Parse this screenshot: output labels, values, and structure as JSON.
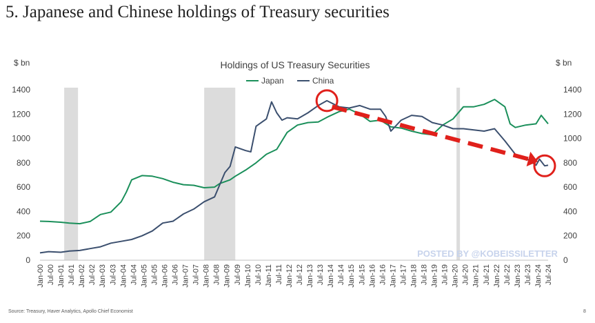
{
  "slide": {
    "title": "5. Japanese and Chinese holdings of Treasury securities",
    "source": "Source: Treasury, Haver Analytics, Apollo Chief Economist",
    "page_number": "8"
  },
  "watermark": "POSTED BY @KOBEISSILETTER",
  "colors": {
    "japan": "#1a8f5a",
    "china": "#3b4f6e",
    "recession": "#dcdcdc",
    "annotation": "#e0201b",
    "watermark": "#c7d3ec"
  },
  "annotations": [
    {
      "type": "circle",
      "date": "2013-11",
      "value": 1310,
      "color": "#e0201b"
    },
    {
      "type": "circle",
      "date": "2024-05",
      "value": 775,
      "color": "#e0201b"
    },
    {
      "type": "dashed-arrow",
      "from_date": "2014-02",
      "from_value": 1260,
      "to_date": "2024-01",
      "to_value": 810,
      "color": "#e0201b"
    }
  ],
  "chart_data": {
    "type": "line",
    "title": "Holdings of US Treasury Securities",
    "ylabel_left": "$ bn",
    "ylabel_right": "$ bn",
    "ylim": [
      0,
      1400
    ],
    "yticks": [
      0,
      200,
      400,
      600,
      800,
      1000,
      1200,
      1400
    ],
    "xlim": [
      "2000-01",
      "2024-07"
    ],
    "xtick_labels": [
      "Jan-00",
      "Jul-00",
      "Jan-01",
      "Jul-01",
      "Jan-02",
      "Jul-02",
      "Jan-03",
      "Jul-03",
      "Jan-04",
      "Jul-04",
      "Jan-05",
      "Jul-05",
      "Jan-06",
      "Jul-06",
      "Jan-07",
      "Jul-07",
      "Jan-08",
      "Jul-08",
      "Jan-09",
      "Jul-09",
      "Jan-10",
      "Jul-10",
      "Jan-11",
      "Jul-11",
      "Jan-12",
      "Jul-12",
      "Jan-13",
      "Jul-13",
      "Jan-14",
      "Jul-14",
      "Jan-15",
      "Jul-15",
      "Jan-16",
      "Jul-16",
      "Jan-17",
      "Jul-17",
      "Jan-18",
      "Jul-18",
      "Jan-19",
      "Jul-19",
      "Jan-20",
      "Jul-20",
      "Jan-21",
      "Jul-21",
      "Jan-22",
      "Jul-22",
      "Jan-23",
      "Jul-23",
      "Jan-24",
      "Jul-24"
    ],
    "legend": {
      "position": "top-center"
    },
    "recession_bands": [
      {
        "start": "2001-03",
        "end": "2001-11"
      },
      {
        "start": "2007-12",
        "end": "2009-06"
      },
      {
        "start": "2020-02",
        "end": "2020-04"
      }
    ],
    "series": [
      {
        "name": "Japan",
        "color": "#1a8f5a",
        "points": [
          [
            "2000-01",
            320
          ],
          [
            "2000-06",
            318
          ],
          [
            "2001-01",
            312
          ],
          [
            "2001-06",
            305
          ],
          [
            "2001-12",
            300
          ],
          [
            "2002-06",
            318
          ],
          [
            "2002-12",
            375
          ],
          [
            "2003-06",
            395
          ],
          [
            "2003-12",
            480
          ],
          [
            "2004-03",
            560
          ],
          [
            "2004-06",
            660
          ],
          [
            "2004-12",
            695
          ],
          [
            "2005-06",
            690
          ],
          [
            "2005-12",
            670
          ],
          [
            "2006-06",
            640
          ],
          [
            "2006-12",
            620
          ],
          [
            "2007-06",
            615
          ],
          [
            "2007-12",
            595
          ],
          [
            "2008-06",
            600
          ],
          [
            "2008-09",
            630
          ],
          [
            "2009-03",
            660
          ],
          [
            "2009-06",
            690
          ],
          [
            "2009-12",
            740
          ],
          [
            "2010-06",
            800
          ],
          [
            "2010-12",
            870
          ],
          [
            "2011-06",
            910
          ],
          [
            "2011-12",
            1050
          ],
          [
            "2012-06",
            1110
          ],
          [
            "2012-12",
            1130
          ],
          [
            "2013-06",
            1135
          ],
          [
            "2013-12",
            1180
          ],
          [
            "2014-06",
            1220
          ],
          [
            "2014-12",
            1240
          ],
          [
            "2015-06",
            1200
          ],
          [
            "2015-12",
            1140
          ],
          [
            "2016-06",
            1150
          ],
          [
            "2016-12",
            1095
          ],
          [
            "2017-06",
            1085
          ],
          [
            "2017-12",
            1060
          ],
          [
            "2018-06",
            1040
          ],
          [
            "2018-12",
            1030
          ],
          [
            "2019-06",
            1110
          ],
          [
            "2019-12",
            1160
          ],
          [
            "2020-06",
            1260
          ],
          [
            "2020-12",
            1260
          ],
          [
            "2021-06",
            1280
          ],
          [
            "2021-12",
            1320
          ],
          [
            "2022-06",
            1260
          ],
          [
            "2022-09",
            1120
          ],
          [
            "2022-12",
            1090
          ],
          [
            "2023-06",
            1110
          ],
          [
            "2023-12",
            1120
          ],
          [
            "2024-03",
            1190
          ],
          [
            "2024-07",
            1120
          ]
        ]
      },
      {
        "name": "China",
        "color": "#3b4f6e",
        "points": [
          [
            "2000-01",
            60
          ],
          [
            "2000-06",
            70
          ],
          [
            "2001-01",
            65
          ],
          [
            "2001-06",
            75
          ],
          [
            "2001-12",
            80
          ],
          [
            "2002-06",
            95
          ],
          [
            "2002-12",
            110
          ],
          [
            "2003-06",
            140
          ],
          [
            "2003-12",
            155
          ],
          [
            "2004-06",
            170
          ],
          [
            "2004-12",
            200
          ],
          [
            "2005-06",
            240
          ],
          [
            "2005-12",
            305
          ],
          [
            "2006-06",
            320
          ],
          [
            "2006-12",
            380
          ],
          [
            "2007-06",
            420
          ],
          [
            "2007-12",
            480
          ],
          [
            "2008-06",
            520
          ],
          [
            "2008-12",
            720
          ],
          [
            "2009-03",
            770
          ],
          [
            "2009-06",
            930
          ],
          [
            "2009-12",
            900
          ],
          [
            "2010-03",
            890
          ],
          [
            "2010-06",
            1100
          ],
          [
            "2010-12",
            1160
          ],
          [
            "2011-03",
            1300
          ],
          [
            "2011-06",
            1210
          ],
          [
            "2011-09",
            1150
          ],
          [
            "2011-12",
            1170
          ],
          [
            "2012-06",
            1160
          ],
          [
            "2012-12",
            1210
          ],
          [
            "2013-06",
            1270
          ],
          [
            "2013-11",
            1310
          ],
          [
            "2014-06",
            1260
          ],
          [
            "2014-12",
            1250
          ],
          [
            "2015-06",
            1270
          ],
          [
            "2015-12",
            1240
          ],
          [
            "2016-06",
            1240
          ],
          [
            "2016-09",
            1180
          ],
          [
            "2016-12",
            1060
          ],
          [
            "2017-06",
            1150
          ],
          [
            "2017-12",
            1190
          ],
          [
            "2018-06",
            1180
          ],
          [
            "2018-12",
            1130
          ],
          [
            "2019-06",
            1110
          ],
          [
            "2019-12",
            1080
          ],
          [
            "2020-06",
            1080
          ],
          [
            "2020-12",
            1070
          ],
          [
            "2021-06",
            1060
          ],
          [
            "2021-12",
            1080
          ],
          [
            "2022-06",
            980
          ],
          [
            "2022-12",
            870
          ],
          [
            "2023-06",
            840
          ],
          [
            "2023-12",
            780
          ],
          [
            "2024-02",
            830
          ],
          [
            "2024-05",
            775
          ],
          [
            "2024-07",
            780
          ]
        ]
      }
    ]
  }
}
